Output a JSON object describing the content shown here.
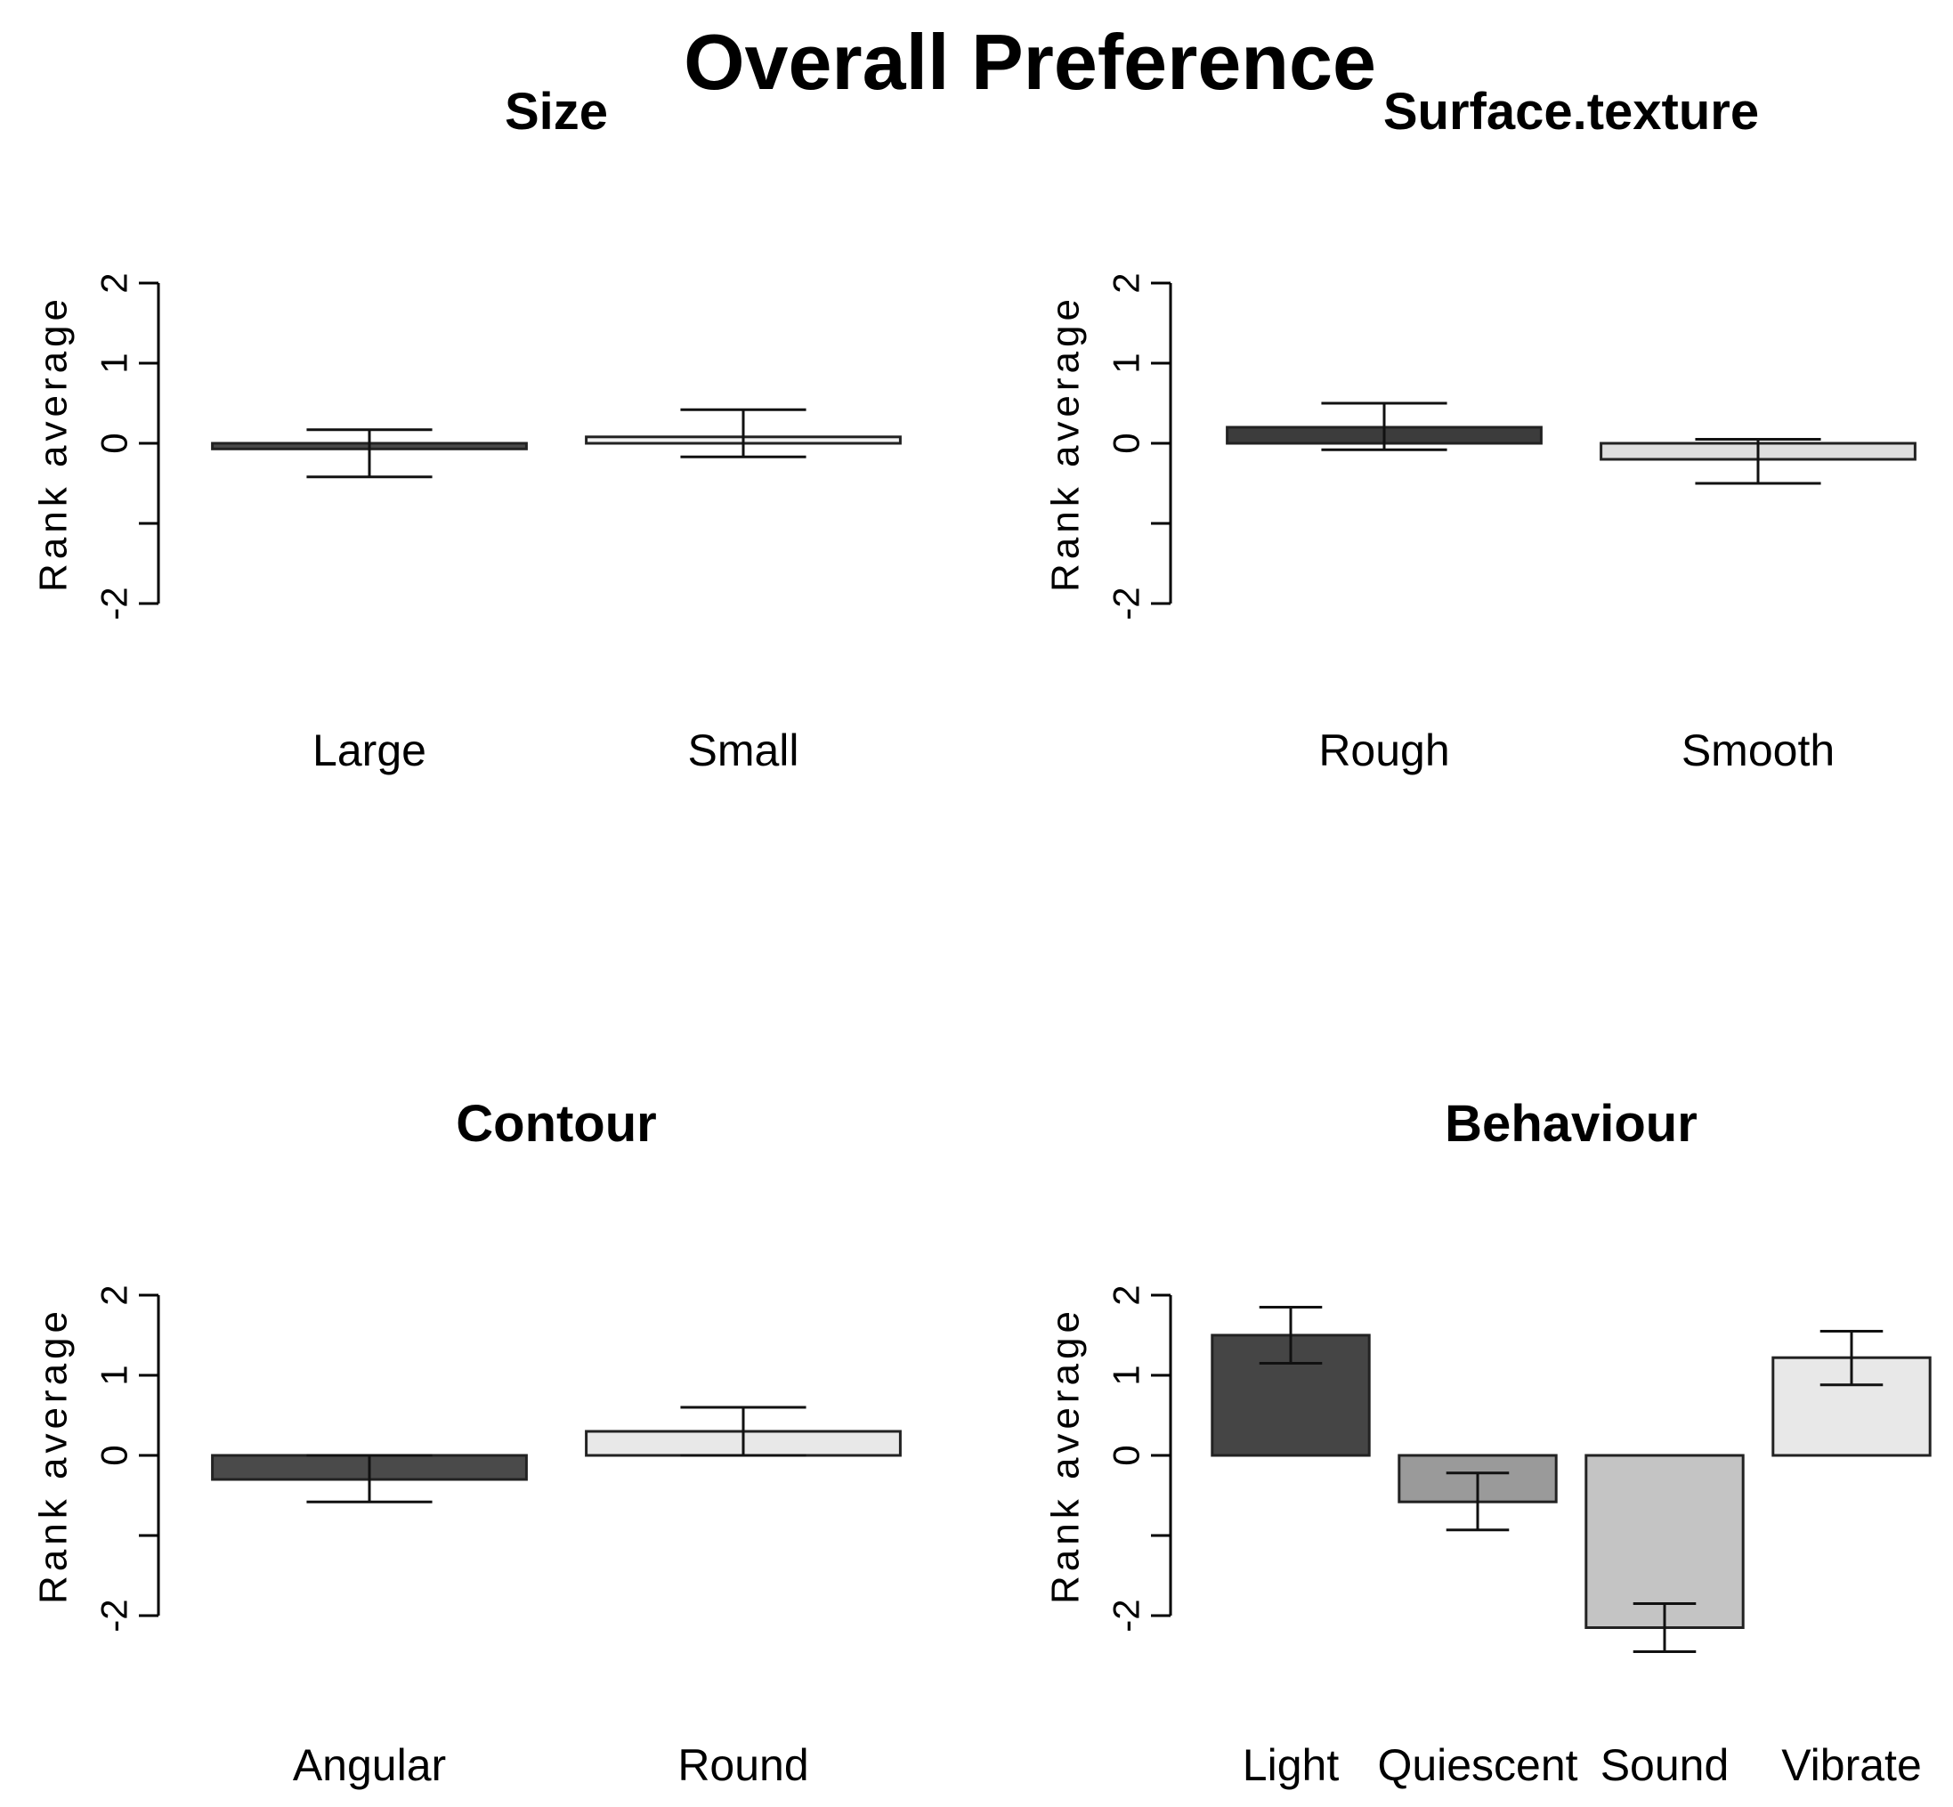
{
  "main_title": "Overall Preference",
  "chart_data": [
    {
      "type": "bar",
      "title": "Size",
      "ylabel": "Rank average",
      "xlabel": "",
      "ylim": [
        -2,
        2
      ],
      "ytick_labels": [
        "2",
        "1",
        "0",
        "",
        "-2"
      ],
      "categories": [
        "Large",
        "Small"
      ],
      "values": [
        -0.07,
        0.08
      ],
      "error_low": [
        -0.42,
        -0.17
      ],
      "error_high": [
        0.17,
        0.42
      ],
      "fills": [
        "#4a4a4a",
        "#f2f2f2"
      ]
    },
    {
      "type": "bar",
      "title": "Surface.texture",
      "ylabel": "Rank average",
      "xlabel": "",
      "ylim": [
        -2,
        2
      ],
      "ytick_labels": [
        "2",
        "1",
        "0",
        "",
        "-2"
      ],
      "categories": [
        "Rough",
        "Smooth"
      ],
      "values": [
        0.2,
        -0.2
      ],
      "error_low": [
        -0.08,
        -0.5
      ],
      "error_high": [
        0.5,
        0.05
      ],
      "fills": [
        "#3c3c3c",
        "#dedede"
      ]
    },
    {
      "type": "bar",
      "title": "Contour",
      "ylabel": "Rank average",
      "xlabel": "",
      "ylim": [
        -2,
        2
      ],
      "ytick_labels": [
        "2",
        "1",
        "0",
        "",
        "-2"
      ],
      "categories": [
        "Angular",
        "Round"
      ],
      "values": [
        -0.3,
        0.3
      ],
      "error_low": [
        -0.58,
        0.0
      ],
      "error_high": [
        0.0,
        0.6
      ],
      "fills": [
        "#4a4a4a",
        "#e8e8e8"
      ]
    },
    {
      "type": "bar",
      "title": "Behaviour",
      "ylabel": "Rank average",
      "xlabel": "",
      "ylim": [
        -2,
        2
      ],
      "ytick_labels": [
        "2",
        "1",
        "0",
        "",
        "-2"
      ],
      "categories": [
        "Light",
        "Quiescent",
        "Sound",
        "Vibrate"
      ],
      "values": [
        1.5,
        -0.58,
        -2.15,
        1.22
      ],
      "error_low": [
        1.15,
        -0.93,
        -2.45,
        0.88
      ],
      "error_high": [
        1.85,
        -0.22,
        -1.85,
        1.55
      ],
      "fills": [
        "#454545",
        "#9a9a9a",
        "#c4c4c4",
        "#e8e8e8"
      ]
    }
  ]
}
